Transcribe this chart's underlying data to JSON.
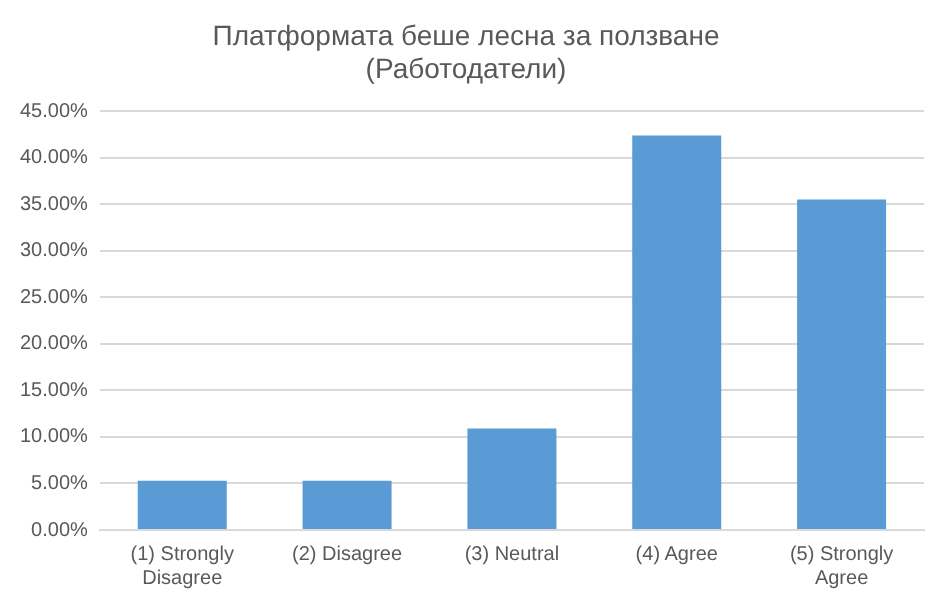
{
  "chart_data": {
    "type": "bar",
    "title": "Платформата беше лесна за ползване (Работодатели)",
    "categories": [
      "(1) Strongly Disagree",
      "(2) Disagree",
      "(3) Neutral",
      "(4) Agree",
      "(5) Strongly Agree"
    ],
    "values": [
      5.3,
      5.3,
      10.9,
      42.4,
      35.5
    ],
    "color": "#5b9bd5",
    "ylim": [
      0,
      45
    ],
    "yticks": [
      {
        "value": 0,
        "label": "0.00%"
      },
      {
        "value": 5,
        "label": "5.00%"
      },
      {
        "value": 10,
        "label": "10.00%"
      },
      {
        "value": 15,
        "label": "15.00%"
      },
      {
        "value": 20,
        "label": "20.00%"
      },
      {
        "value": 25,
        "label": "25.00%"
      },
      {
        "value": 30,
        "label": "30.00%"
      },
      {
        "value": 35,
        "label": "35.00%"
      },
      {
        "value": 40,
        "label": "40.00%"
      },
      {
        "value": 45,
        "label": "45.00%"
      }
    ],
    "grid": "y",
    "legend": false
  }
}
